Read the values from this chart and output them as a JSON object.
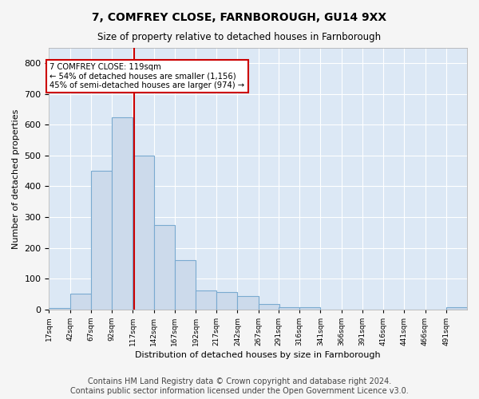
{
  "title": "7, COMFREY CLOSE, FARNBOROUGH, GU14 9XX",
  "subtitle": "Size of property relative to detached houses in Farnborough",
  "xlabel": "Distribution of detached houses by size in Farnborough",
  "ylabel": "Number of detached properties",
  "bar_color": "#ccdaeb",
  "bar_edgecolor": "#7aaad0",
  "background_color": "#dce8f5",
  "grid_color": "#ffffff",
  "vline_x": 119,
  "vline_color": "#cc0000",
  "annotation_text": "7 COMFREY CLOSE: 119sqm\n← 54% of detached houses are smaller (1,156)\n45% of semi-detached houses are larger (974) →",
  "annotation_box_color": "#ffffff",
  "annotation_box_edgecolor": "#cc0000",
  "bin_edges": [
    17,
    42,
    67,
    92,
    117,
    142,
    167,
    192,
    217,
    242,
    267,
    291,
    316,
    341,
    366,
    391,
    416,
    441,
    466,
    491,
    516
  ],
  "bar_heights": [
    5,
    50,
    450,
    625,
    500,
    275,
    160,
    62,
    55,
    42,
    18,
    8,
    8,
    0,
    0,
    0,
    0,
    0,
    0,
    7
  ],
  "ylim": [
    0,
    850
  ],
  "yticks": [
    0,
    100,
    200,
    300,
    400,
    500,
    600,
    700,
    800
  ],
  "footer": "Contains HM Land Registry data © Crown copyright and database right 2024.\nContains public sector information licensed under the Open Government Licence v3.0.",
  "footer_fontsize": 7,
  "fig_bg": "#f5f5f5"
}
